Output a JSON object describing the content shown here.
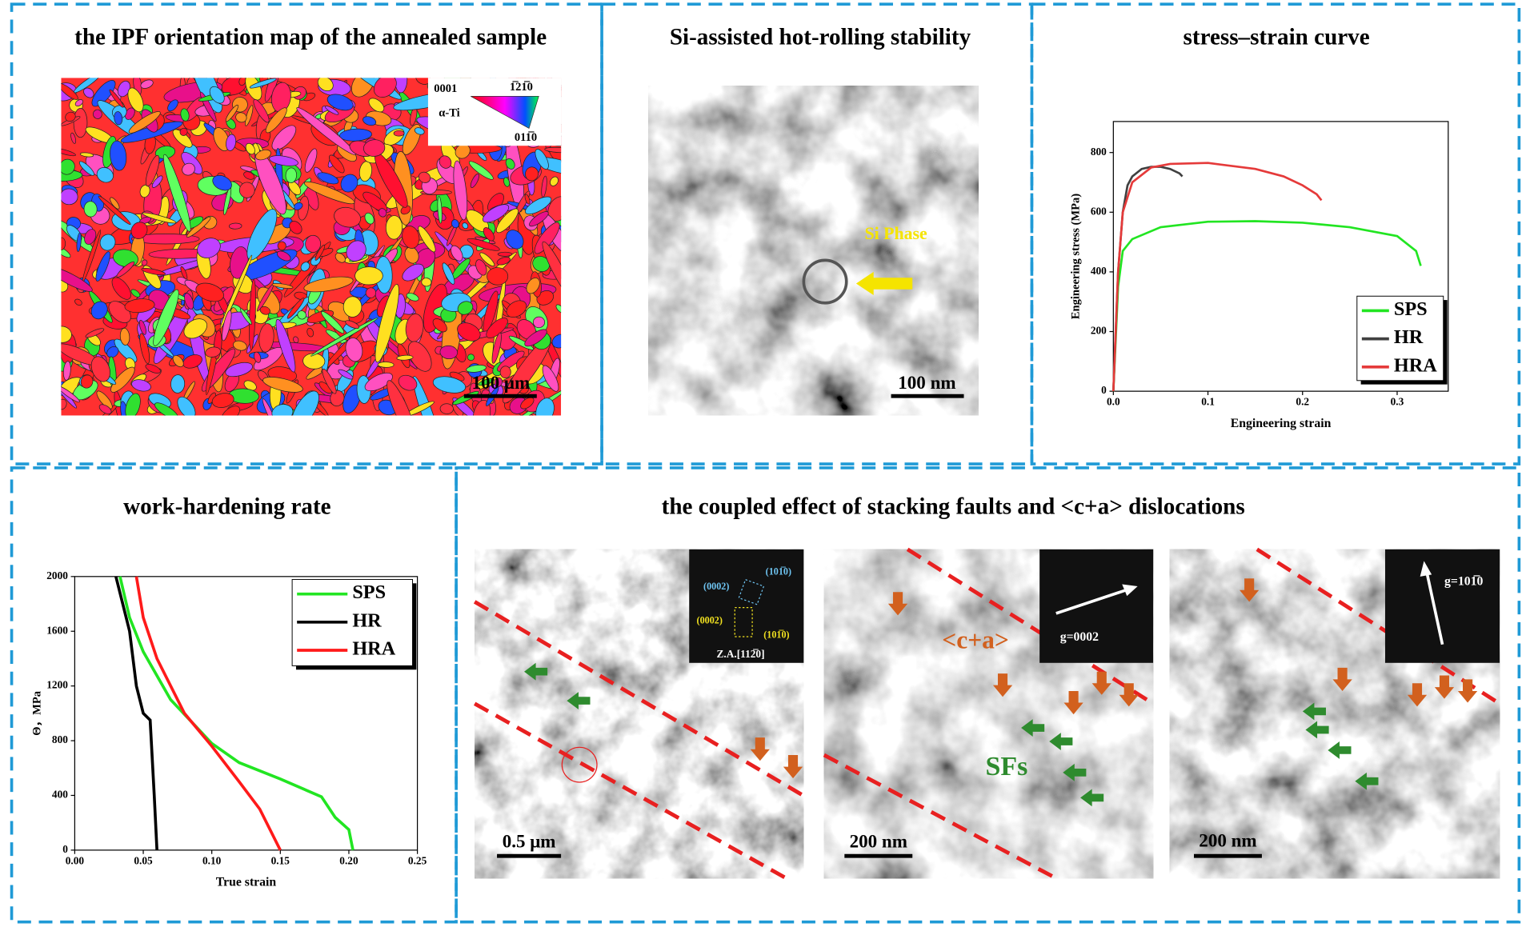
{
  "panels": {
    "ipf": {
      "title": "the IPF orientation map of the annealed sample",
      "legend": {
        "pole_basal": "0001",
        "pole_prism_a": "1̅21̅0",
        "phase": "α-Ti",
        "pole_prism_b": "011̅0"
      },
      "scale_bar": "100 μm"
    },
    "si": {
      "title": "Si-assisted hot-rolling stability",
      "annotation": "Si Phase",
      "scale_bar": "100 nm"
    },
    "stress_strain": {
      "title": "stress–strain curve"
    },
    "work_hardening": {
      "title": "work-hardening rate"
    },
    "faults": {
      "title": "the coupled effect of stacking faults and <c+a> dislocations",
      "image_a": {
        "spot_1": "(0002)",
        "spot_2": "(101̅0)",
        "spot_3": "(0002)",
        "spot_4": "(101̅0)",
        "zone_axis": "Z.A.[112̅0]",
        "scale_bar": "0.5 μm"
      },
      "image_b": {
        "g_vector": "g=0002",
        "dislocation": "<c+a>",
        "faults": "SFs",
        "scale_bar": "200 nm"
      },
      "image_c": {
        "g_vector": "g=101̅0",
        "scale_bar": "200 nm"
      }
    }
  },
  "chart_data": [
    {
      "type": "line",
      "xlabel": "Engineering strain",
      "ylabel": "Engineering stress (MPa)",
      "xlim": [
        0,
        0.354
      ],
      "ylim": [
        0,
        904
      ],
      "xticks": [
        {
          "value": 0,
          "label": "0.0"
        },
        0.1,
        0.2,
        0.3
      ],
      "yticks": [
        0,
        200,
        400,
        600,
        800
      ],
      "legend": "lower right",
      "series": [
        {
          "name": "SPS",
          "color": "#22e522",
          "x": [
            0,
            0.005,
            0.01,
            0.02,
            0.05,
            0.1,
            0.15,
            0.2,
            0.25,
            0.3,
            0.32,
            0.325
          ],
          "values": [
            0,
            350,
            470,
            510,
            550,
            568,
            570,
            565,
            550,
            520,
            470,
            420
          ]
        },
        {
          "name": "HR",
          "color": "#404040",
          "x": [
            0,
            0.005,
            0.01,
            0.015,
            0.02,
            0.03,
            0.04,
            0.05,
            0.06,
            0.07,
            0.073
          ],
          "values": [
            0,
            400,
            600,
            690,
            720,
            745,
            752,
            752,
            745,
            730,
            720
          ]
        },
        {
          "name": "HRA",
          "color": "#e53a3a",
          "x": [
            0,
            0.005,
            0.01,
            0.02,
            0.04,
            0.06,
            0.1,
            0.15,
            0.18,
            0.2,
            0.215,
            0.22
          ],
          "values": [
            0,
            400,
            600,
            700,
            750,
            762,
            765,
            745,
            720,
            690,
            660,
            640
          ]
        }
      ]
    },
    {
      "type": "line",
      "xlabel": "True strain",
      "ylabel": "Θ，MPa",
      "xlim": [
        0,
        0.25
      ],
      "ylim": [
        0,
        2000
      ],
      "xticks": [
        {
          "value": 0,
          "label": "0.00"
        },
        0.05,
        {
          "value": 0.1,
          "label": "0.10"
        },
        0.15,
        {
          "value": 0.2,
          "label": "0.20"
        },
        0.25
      ],
      "yticks": [
        0,
        400,
        800,
        1200,
        1600,
        2000
      ],
      "legend": "upper right",
      "series": [
        {
          "name": "SPS",
          "color": "#22e522",
          "x": [
            0.033,
            0.04,
            0.05,
            0.07,
            0.1,
            0.12,
            0.15,
            0.18,
            0.19,
            0.2,
            0.203
          ],
          "values": [
            2000,
            1700,
            1450,
            1100,
            780,
            640,
            520,
            390,
            240,
            150,
            0
          ]
        },
        {
          "name": "HR",
          "color": "#000000",
          "x": [
            0.03,
            0.04,
            0.045,
            0.05,
            0.055,
            0.058,
            0.06
          ],
          "values": [
            2000,
            1600,
            1200,
            1000,
            950,
            400,
            0
          ]
        },
        {
          "name": "HRA",
          "color": "#ff1a1a",
          "x": [
            0.045,
            0.05,
            0.06,
            0.08,
            0.1,
            0.12,
            0.135,
            0.15
          ],
          "values": [
            2000,
            1700,
            1400,
            1000,
            760,
            500,
            300,
            0
          ]
        }
      ]
    }
  ]
}
